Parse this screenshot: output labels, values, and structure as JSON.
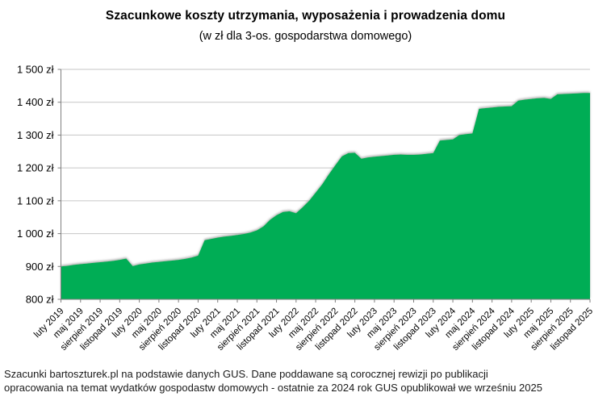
{
  "title": "Szacunkowe koszty utrzymania, wyposażenia i prowadzenia domu",
  "subtitle": "(w zł dla 3-os. gospodarstwa domowego)",
  "footer": {
    "line1": "Szacunki bartoszturek.pl na podstawie danych GUS. Dane poddawane są corocznej rewizji po publikacji",
    "line2": "opracowania na temat wydatków gospodastw domowych - ostatnie za 2024 rok GUS opublikował we wrześniu 2025"
  },
  "chart_data": {
    "type": "area",
    "title": "Szacunkowe koszty utrzymania, wyposażenia i prowadzenia domu",
    "subtitle": "(w zł dla 3-os. gospodarstwa domowego)",
    "unit": "zł",
    "x_start": "luty 2019",
    "x_interval": "1 month",
    "x_tick_every_n_months": 3,
    "x_tick_labels": [
      "luty 2019",
      "maj 2019",
      "sierpień 2019",
      "listopad 2019",
      "luty 2020",
      "maj 2020",
      "sierpień 2020",
      "listopad 2020",
      "luty 2021",
      "maj 2021",
      "sierpień 2021",
      "listopad 2021",
      "luty 2022",
      "maj 2022",
      "sierpień 2022",
      "listopad 2022",
      "luty 2023",
      "maj 2023",
      "sierpień 2023",
      "listopad 2023",
      "luty 2024",
      "maj 2024",
      "sierpień 2024",
      "listopad 2024",
      "luty 2025",
      "maj 2025",
      "sierpień 2025",
      "listopad 2025"
    ],
    "values": [
      900,
      902,
      905,
      907,
      909,
      911,
      913,
      915,
      917,
      920,
      924,
      901,
      906,
      909,
      912,
      914,
      916,
      918,
      920,
      923,
      927,
      933,
      980,
      984,
      988,
      991,
      993,
      996,
      999,
      1003,
      1010,
      1022,
      1042,
      1056,
      1066,
      1068,
      1062,
      1080,
      1100,
      1125,
      1150,
      1180,
      1208,
      1235,
      1245,
      1246,
      1228,
      1232,
      1234,
      1236,
      1238,
      1240,
      1241,
      1240,
      1240,
      1241,
      1243,
      1245,
      1283,
      1285,
      1287,
      1300,
      1303,
      1305,
      1380,
      1382,
      1384,
      1386,
      1387,
      1388,
      1405,
      1408,
      1410,
      1412,
      1413,
      1410,
      1424,
      1425,
      1426,
      1427,
      1428,
      1428
    ],
    "ylim": [
      800,
      1500
    ],
    "ytick_step": 100,
    "ytick_suffix": " zł",
    "grid": true,
    "legend": "none",
    "series_color": "#00AD55",
    "axis_color": "#7F7F7F",
    "grid_color": "#C6C6C6"
  }
}
